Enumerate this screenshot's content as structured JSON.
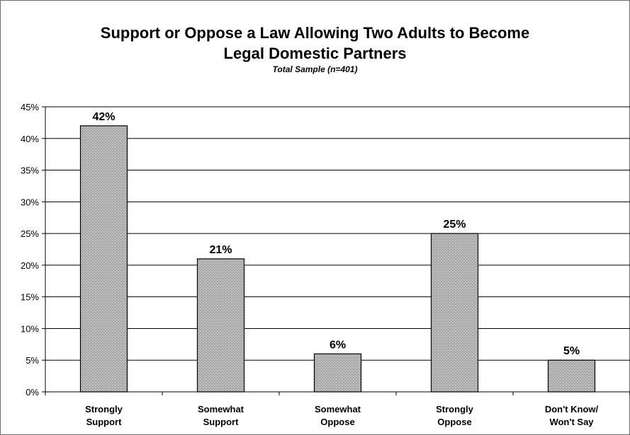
{
  "chart_data": {
    "type": "bar",
    "title_line1": "Support or Oppose a Law Allowing Two Adults to Become",
    "title_line2": "Legal Domestic Partners",
    "subtitle": "Total Sample (n=401)",
    "categories": [
      [
        "Strongly",
        "Support"
      ],
      [
        "Somewhat",
        "Support"
      ],
      [
        "Somewhat",
        "Oppose"
      ],
      [
        "Strongly",
        "Oppose"
      ],
      [
        "Don't Know/",
        "Won't Say"
      ]
    ],
    "values": [
      42,
      21,
      6,
      25,
      5
    ],
    "data_labels": [
      "42%",
      "21%",
      "6%",
      "25%",
      "5%"
    ],
    "ylim": [
      0,
      45
    ],
    "yticks": [
      0,
      5,
      10,
      15,
      20,
      25,
      30,
      35,
      40,
      45
    ],
    "ytick_labels": [
      "0%",
      "5%",
      "10%",
      "15%",
      "20%",
      "25%",
      "30%",
      "35%",
      "40%",
      "45%"
    ],
    "grid": true,
    "bar_color": "#a8a8a8",
    "bar_edge_color": "#000000"
  }
}
